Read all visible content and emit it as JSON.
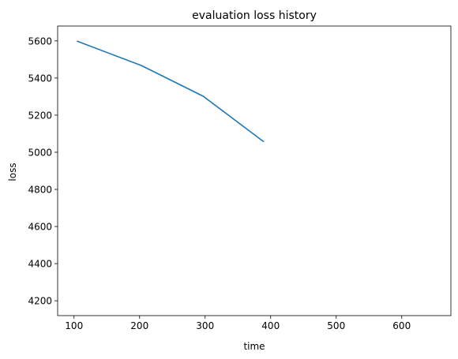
{
  "chart_data": {
    "type": "line",
    "title": "evaluation loss history",
    "xlabel": "time",
    "ylabel": "loss",
    "xlim": [
      75,
      675
    ],
    "ylim": [
      4120,
      5680
    ],
    "xticks": [
      100,
      200,
      300,
      400,
      500,
      600
    ],
    "yticks": [
      4200,
      4400,
      4600,
      4800,
      5000,
      5200,
      5400,
      5600
    ],
    "grid": false,
    "line_color": "#1f77b4",
    "series": [
      {
        "x": [
          105,
          203,
          297,
          389
        ],
        "y": [
          5598,
          5467,
          5302,
          5058
        ]
      }
    ]
  }
}
